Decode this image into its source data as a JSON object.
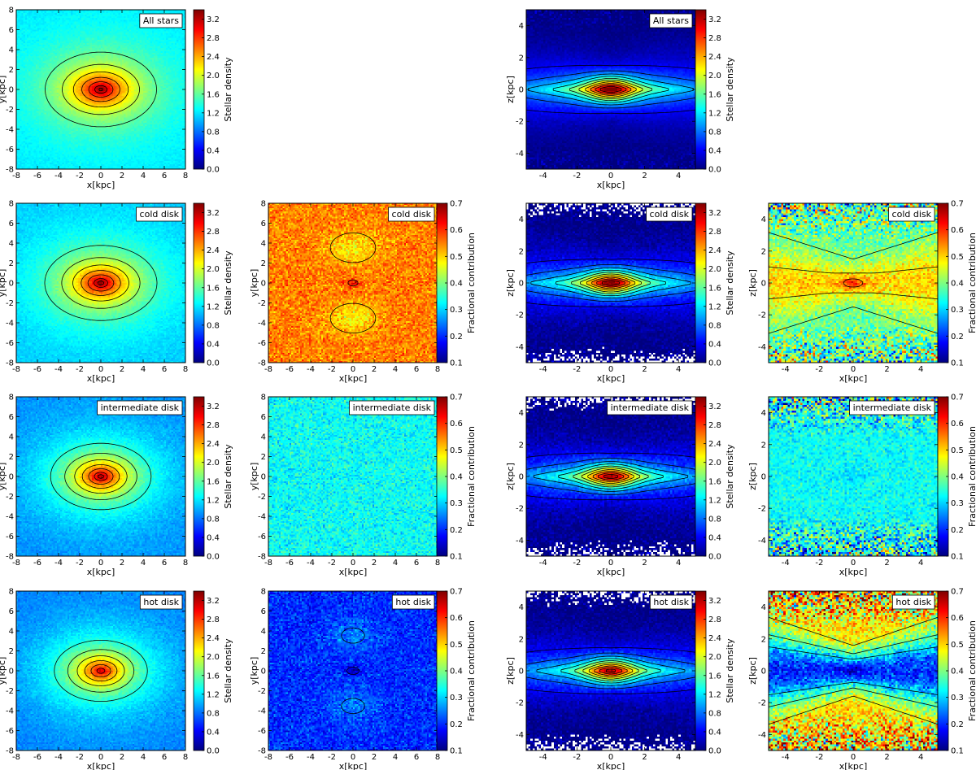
{
  "figure": {
    "caption": ""
  },
  "colormap": {
    "name": "jet",
    "stops": [
      "#00007f",
      "#0000ff",
      "#007fff",
      "#00ffff",
      "#7fff7f",
      "#ffff00",
      "#ff7f00",
      "#ff0000",
      "#7f0000"
    ]
  },
  "chart_data": [
    {
      "id": "xy-all-density",
      "type": "heatmap",
      "projection": "xy",
      "population": "All stars",
      "kind": "density",
      "xlabel": "x[kpc]",
      "ylabel": "y[kpc]",
      "xlim": [
        -8,
        8
      ],
      "ylim": [
        -8,
        8
      ],
      "xticks": [
        -8,
        -6,
        -4,
        -2,
        0,
        2,
        4,
        6,
        8
      ],
      "yticks": [
        -8,
        -6,
        -4,
        -2,
        0,
        2,
        4,
        6,
        8
      ],
      "colorbar": {
        "label": "Stellar density",
        "range": [
          0.0,
          3.4
        ],
        "ticks": [
          "0.0",
          "0.4",
          "0.8",
          "1.2",
          "1.6",
          "2.0",
          "2.4",
          "2.8",
          "3.2"
        ]
      },
      "peak": 3.4,
      "background": 1.55,
      "noise": 0.06,
      "contour_levels": [
        1.6,
        1.9,
        2.2,
        2.5,
        2.8,
        3.1,
        3.3
      ]
    },
    {
      "id": "xz-all-density",
      "type": "heatmap",
      "projection": "xz",
      "population": "All stars",
      "kind": "density",
      "xlabel": "x[kpc]",
      "ylabel": "z[kpc]",
      "xlim": [
        -5,
        5
      ],
      "ylim": [
        -5,
        5
      ],
      "xticks": [
        -4,
        -2,
        0,
        2,
        4
      ],
      "yticks": [
        -4,
        -2,
        0,
        2,
        4
      ],
      "colorbar": {
        "label": "Stellar density",
        "range": [
          0.0,
          3.4
        ],
        "ticks": [
          "0.0",
          "0.4",
          "0.8",
          "1.2",
          "1.6",
          "2.0",
          "2.4",
          "2.8",
          "3.2"
        ]
      },
      "peak": 3.5,
      "noise": 0.06,
      "contour_levels": [
        0.4,
        0.7,
        1.0,
        1.3,
        1.6,
        1.9,
        2.2,
        2.5,
        2.8,
        3.1
      ]
    },
    {
      "id": "xy-cold-density",
      "type": "heatmap",
      "projection": "xy",
      "population": "cold disk",
      "kind": "density",
      "xlabel": "x[kpc]",
      "ylabel": "y[kpc]",
      "xlim": [
        -8,
        8
      ],
      "ylim": [
        -8,
        8
      ],
      "xticks": [
        -8,
        -6,
        -4,
        -2,
        0,
        2,
        4,
        6,
        8
      ],
      "yticks": [
        -8,
        -6,
        -4,
        -2,
        0,
        2,
        4,
        6,
        8
      ],
      "colorbar": {
        "label": "Stellar density",
        "range": [
          0.0,
          3.4
        ],
        "ticks": [
          "0.0",
          "0.4",
          "0.8",
          "1.2",
          "1.6",
          "2.0",
          "2.4",
          "2.8",
          "3.2"
        ]
      },
      "peak": 3.35,
      "background": 1.45,
      "noise": 0.08,
      "contour_levels": [
        1.5,
        1.8,
        2.1,
        2.4,
        2.7,
        3.0,
        3.2
      ]
    },
    {
      "id": "xy-cold-fraction",
      "type": "heatmap",
      "projection": "xy",
      "population": "cold disk",
      "kind": "fraction",
      "xlabel": "x[kpc]",
      "ylabel": "y[kpc]",
      "xlim": [
        -8,
        8
      ],
      "ylim": [
        -8,
        8
      ],
      "xticks": [
        -8,
        -6,
        -4,
        -2,
        0,
        2,
        4,
        6,
        8
      ],
      "yticks": [
        -8,
        -6,
        -4,
        -2,
        0,
        2,
        4,
        6,
        8
      ],
      "colorbar": {
        "label": "Fractional contribution",
        "range": [
          0.1,
          0.7
        ],
        "ticks": [
          "0.1",
          "0.2",
          "0.3",
          "0.4",
          "0.5",
          "0.6",
          "0.7"
        ]
      },
      "base": 0.55,
      "lobe": -0.07,
      "center": 0.08,
      "noise": 0.05,
      "contour_levels": [
        0.52,
        0.6
      ]
    },
    {
      "id": "xz-cold-density",
      "type": "heatmap",
      "projection": "xz",
      "population": "cold disk",
      "kind": "density",
      "xlabel": "x[kpc]",
      "ylabel": "z[kpc]",
      "xlim": [
        -5,
        5
      ],
      "ylim": [
        -5,
        5
      ],
      "xticks": [
        -4,
        -2,
        0,
        2,
        4
      ],
      "yticks": [
        -4,
        -2,
        0,
        2,
        4
      ],
      "colorbar": {
        "label": "Stellar density",
        "range": [
          0.0,
          3.4
        ],
        "ticks": [
          "0.0",
          "0.4",
          "0.8",
          "1.2",
          "1.6",
          "2.0",
          "2.4",
          "2.8",
          "3.2"
        ]
      },
      "peak": 3.4,
      "noise": 0.12,
      "blank_edges": true,
      "contour_levels": [
        0.4,
        0.7,
        1.0,
        1.3,
        1.6,
        1.9,
        2.2,
        2.5,
        2.8,
        3.1
      ]
    },
    {
      "id": "xz-cold-fraction",
      "type": "heatmap",
      "projection": "xz",
      "population": "cold disk",
      "kind": "fraction",
      "xlabel": "x[kpc]",
      "ylabel": "z[kpc]",
      "xlim": [
        -5,
        5
      ],
      "ylim": [
        -5,
        5
      ],
      "xticks": [
        -4,
        -2,
        0,
        2,
        4
      ],
      "yticks": [
        -4,
        -2,
        0,
        2,
        4
      ],
      "colorbar": {
        "label": "Fractional contribution",
        "range": [
          0.1,
          0.7
        ],
        "ticks": [
          "0.1",
          "0.2",
          "0.3",
          "0.4",
          "0.5",
          "0.6",
          "0.7"
        ]
      },
      "base": 0.5,
      "vertical": -0.12,
      "center": 0.1,
      "noise": 0.05,
      "edge_noise": 0.16,
      "contour_levels": [
        0.4,
        0.48,
        0.56
      ]
    },
    {
      "id": "xy-intermediate-density",
      "type": "heatmap",
      "projection": "xy",
      "population": "intermediate disk",
      "kind": "density",
      "xlabel": "x[kpc]",
      "ylabel": "y[kpc]",
      "xlim": [
        -8,
        8
      ],
      "ylim": [
        -8,
        8
      ],
      "xticks": [
        -8,
        -6,
        -4,
        -2,
        0,
        2,
        4,
        6,
        8
      ],
      "yticks": [
        -8,
        -6,
        -4,
        -2,
        0,
        2,
        4,
        6,
        8
      ],
      "colorbar": {
        "label": "Stellar density",
        "range": [
          0.0,
          3.4
        ],
        "ticks": [
          "0.0",
          "0.4",
          "0.8",
          "1.2",
          "1.6",
          "2.0",
          "2.4",
          "2.8",
          "3.2"
        ]
      },
      "peak": 3.25,
      "background": 1.25,
      "noise": 0.1,
      "contour_levels": [
        1.4,
        1.7,
        2.0,
        2.3,
        2.6,
        2.9,
        3.1
      ]
    },
    {
      "id": "xy-intermediate-fraction",
      "type": "heatmap",
      "projection": "xy",
      "population": "intermediate disk",
      "kind": "fraction",
      "xlabel": "x[kpc]",
      "ylabel": "y[kpc]",
      "xlim": [
        -8,
        8
      ],
      "ylim": [
        -8,
        8
      ],
      "xticks": [
        -8,
        -6,
        -4,
        -2,
        0,
        2,
        4,
        6,
        8
      ],
      "yticks": [
        -8,
        -6,
        -4,
        -2,
        0,
        2,
        4,
        6,
        8
      ],
      "colorbar": {
        "label": "Fractional contribution",
        "range": [
          0.1,
          0.7
        ],
        "ticks": [
          "0.1",
          "0.2",
          "0.3",
          "0.4",
          "0.5",
          "0.6",
          "0.7"
        ]
      },
      "base": 0.33,
      "lobe": 0.0,
      "center": -0.02,
      "noise": 0.045,
      "contour_levels": [
        0.3,
        0.34
      ]
    },
    {
      "id": "xz-intermediate-density",
      "type": "heatmap",
      "projection": "xz",
      "population": "intermediate disk",
      "kind": "density",
      "xlabel": "x[kpc]",
      "ylabel": "z[kpc]",
      "xlim": [
        -5,
        5
      ],
      "ylim": [
        -5,
        5
      ],
      "xticks": [
        -4,
        -2,
        0,
        2,
        4
      ],
      "yticks": [
        -4,
        -2,
        0,
        2,
        4
      ],
      "colorbar": {
        "label": "Stellar density",
        "range": [
          0.0,
          3.4
        ],
        "ticks": [
          "0.0",
          "0.4",
          "0.8",
          "1.2",
          "1.6",
          "2.0",
          "2.4",
          "2.8",
          "3.2"
        ]
      },
      "peak": 3.3,
      "noise": 0.14,
      "blank_edges": true,
      "contour_levels": [
        0.4,
        0.7,
        1.0,
        1.3,
        1.6,
        1.9,
        2.2,
        2.5,
        2.8,
        3.1
      ]
    },
    {
      "id": "xz-intermediate-fraction",
      "type": "heatmap",
      "projection": "xz",
      "population": "intermediate disk",
      "kind": "fraction",
      "xlabel": "x[kpc]",
      "ylabel": "z[kpc]",
      "xlim": [
        -5,
        5
      ],
      "ylim": [
        -5,
        5
      ],
      "xticks": [
        -4,
        -2,
        0,
        2,
        4
      ],
      "yticks": [
        -4,
        -2,
        0,
        2,
        4
      ],
      "colorbar": {
        "label": "Fractional contribution",
        "range": [
          0.1,
          0.7
        ],
        "ticks": [
          "0.1",
          "0.2",
          "0.3",
          "0.4",
          "0.5",
          "0.6",
          "0.7"
        ]
      },
      "base": 0.33,
      "vertical": 0.0,
      "center": -0.03,
      "noise": 0.04,
      "edge_noise": 0.18,
      "contour_levels": [
        0.3,
        0.36
      ]
    },
    {
      "id": "xy-hot-density",
      "type": "heatmap",
      "projection": "xy",
      "population": "hot disk",
      "kind": "density",
      "xlabel": "x[kpc]",
      "ylabel": "y[kpc]",
      "xlim": [
        -8,
        8
      ],
      "ylim": [
        -8,
        8
      ],
      "xticks": [
        -8,
        -6,
        -4,
        -2,
        0,
        2,
        4,
        6,
        8
      ],
      "yticks": [
        -8,
        -6,
        -4,
        -2,
        0,
        2,
        4,
        6,
        8
      ],
      "colorbar": {
        "label": "Stellar density",
        "range": [
          0.0,
          3.4
        ],
        "ticks": [
          "0.0",
          "0.4",
          "0.8",
          "1.2",
          "1.6",
          "2.0",
          "2.4",
          "2.8",
          "3.2"
        ]
      },
      "peak": 3.1,
      "background": 1.2,
      "noise": 0.1,
      "contour_levels": [
        1.4,
        1.7,
        2.0,
        2.3,
        2.6,
        2.9
      ]
    },
    {
      "id": "xy-hot-fraction",
      "type": "heatmap",
      "projection": "xy",
      "population": "hot disk",
      "kind": "fraction",
      "xlabel": "x[kpc]",
      "ylabel": "y[kpc]",
      "xlim": [
        -8,
        8
      ],
      "ylim": [
        -8,
        8
      ],
      "xticks": [
        -8,
        -6,
        -4,
        -2,
        0,
        2,
        4,
        6,
        8
      ],
      "yticks": [
        -8,
        -6,
        -4,
        -2,
        0,
        2,
        4,
        6,
        8
      ],
      "colorbar": {
        "label": "Fractional contribution",
        "range": [
          0.1,
          0.7
        ],
        "ticks": [
          "0.1",
          "0.2",
          "0.3",
          "0.4",
          "0.5",
          "0.6",
          "0.7"
        ]
      },
      "base": 0.2,
      "lobe": 0.05,
      "center": -0.08,
      "noise": 0.045,
      "contour_levels": [
        0.16,
        0.24
      ]
    },
    {
      "id": "xz-hot-density",
      "type": "heatmap",
      "projection": "xz",
      "population": "hot disk",
      "kind": "density",
      "xlabel": "x[kpc]",
      "ylabel": "z[kpc]",
      "xlim": [
        -5,
        5
      ],
      "ylim": [
        -5,
        5
      ],
      "xticks": [
        -4,
        -2,
        0,
        2,
        4
      ],
      "yticks": [
        -4,
        -2,
        0,
        2,
        4
      ],
      "colorbar": {
        "label": "Stellar density",
        "range": [
          0.0,
          3.4
        ],
        "ticks": [
          "0.0",
          "0.4",
          "0.8",
          "1.2",
          "1.6",
          "2.0",
          "2.4",
          "2.8",
          "3.2"
        ]
      },
      "peak": 3.2,
      "noise": 0.12,
      "blank_edges": true,
      "contour_levels": [
        0.4,
        0.7,
        1.0,
        1.3,
        1.6,
        1.9,
        2.2,
        2.5,
        2.8,
        3.1
      ]
    },
    {
      "id": "xz-hot-fraction",
      "type": "heatmap",
      "projection": "xz",
      "population": "hot disk",
      "kind": "fraction",
      "xlabel": "x[kpc]",
      "ylabel": "z[kpc]",
      "xlim": [
        -5,
        5
      ],
      "ylim": [
        -5,
        5
      ],
      "xticks": [
        -4,
        -2,
        0,
        2,
        4
      ],
      "yticks": [
        -4,
        -2,
        0,
        2,
        4
      ],
      "colorbar": {
        "label": "Fractional contribution",
        "range": [
          0.1,
          0.7
        ],
        "ticks": [
          "0.1",
          "0.2",
          "0.3",
          "0.4",
          "0.5",
          "0.6",
          "0.7"
        ]
      },
      "base": 0.2,
      "vertical": 0.3,
      "center": -0.05,
      "noise": 0.06,
      "edge_noise": 0.2,
      "contour_levels": [
        0.3,
        0.38,
        0.46
      ]
    }
  ]
}
